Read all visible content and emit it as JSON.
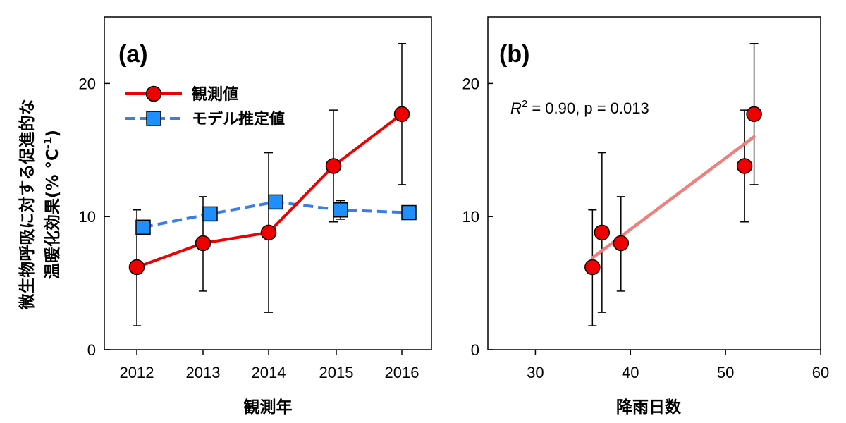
{
  "chart_data": [
    {
      "type": "line",
      "panel_label": "(a)",
      "xlabel": "観測年",
      "ylabel_line1": "微生物呼吸に対する促進的な",
      "ylabel_line2": "温暖化効果(% °C",
      "ylabel_sup": "-1",
      "ylabel_close": ")",
      "categories": [
        "2012",
        "2013",
        "2014",
        "2015",
        "2016"
      ],
      "ylim": [
        0,
        25
      ],
      "yticks": [
        "0",
        "10",
        "20"
      ],
      "legend_position": "upper-left",
      "series": [
        {
          "name": "観測値",
          "color": "#ee0000",
          "marker": "circle",
          "line_style": "solid",
          "values": [
            6.2,
            8.0,
            8.8,
            13.8,
            17.7
          ],
          "err_low": [
            1.8,
            4.4,
            2.8,
            9.6,
            12.4
          ],
          "err_high": [
            10.5,
            11.5,
            14.8,
            18.0,
            23.0
          ]
        },
        {
          "name": "モデル推定値",
          "color": "#3b7de6",
          "marker_fill": "#1f8fff",
          "marker": "square",
          "line_style": "dashed",
          "values": [
            9.2,
            10.2,
            11.1,
            10.5,
            10.3
          ],
          "err_low": [
            null,
            null,
            null,
            9.8,
            null
          ],
          "err_high": [
            null,
            null,
            null,
            11.2,
            null
          ]
        }
      ]
    },
    {
      "type": "scatter",
      "panel_label": "(b)",
      "xlabel": "降雨日数",
      "xlim": [
        25,
        60
      ],
      "ylim": [
        0,
        25
      ],
      "xticks": [
        "30",
        "40",
        "50",
        "60"
      ],
      "yticks": [
        "0",
        "10",
        "20"
      ],
      "annotation": {
        "r_symbol": "R",
        "r_sup": "2",
        "rest": " = 0.90, p = 0.013"
      },
      "points": {
        "color": "#ee0000",
        "x": [
          36,
          37,
          39,
          52,
          53
        ],
        "y": [
          6.2,
          8.8,
          8.0,
          13.8,
          17.7
        ],
        "err_low": [
          1.8,
          2.8,
          4.4,
          9.6,
          12.4
        ],
        "err_high": [
          10.5,
          14.8,
          11.5,
          18.0,
          23.0
        ]
      },
      "fit_line": {
        "color": "#f08080",
        "x": [
          36,
          53
        ],
        "y": [
          6.9,
          16.0
        ]
      }
    }
  ]
}
